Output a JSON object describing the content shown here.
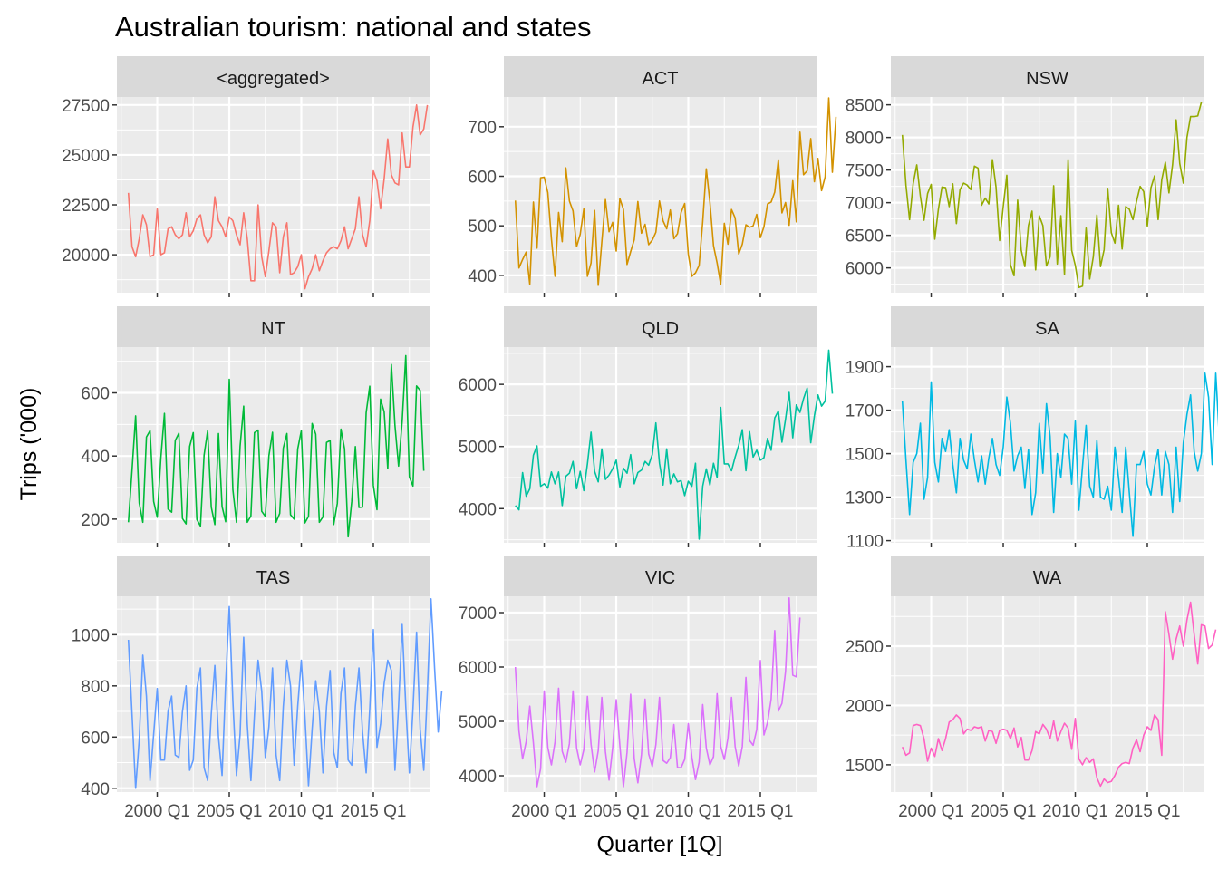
{
  "chart_data": {
    "type": "line",
    "title": "Australian tourism: national and states",
    "xlabel": "Quarter [1Q]",
    "ylabel": "Trips ('000)",
    "x_tick_labels": [
      "2000 Q1",
      "2005 Q1",
      "2010 Q1",
      "2015 Q1"
    ],
    "x_tick_years": [
      2000,
      2005,
      2010,
      2015
    ],
    "x_range": [
      1997.2,
      2018.9
    ],
    "start": "1998 Q1",
    "legend": "none",
    "panels": [
      {
        "name": "<aggregated>",
        "color": "#F8766D",
        "ylim": [
          18100,
          27900
        ],
        "yticks": [
          20000,
          22500,
          25000,
          27500
        ],
        "yticklabels": [
          "20000",
          "22500",
          "25000",
          "27500"
        ],
        "values": [
          23100,
          20400,
          19900,
          20800,
          22000,
          21500,
          19900,
          20000,
          22300,
          20000,
          20100,
          21300,
          21400,
          21000,
          20800,
          21000,
          22100,
          20900,
          21200,
          21800,
          22000,
          21000,
          20600,
          20900,
          22900,
          21700,
          21400,
          20900,
          21900,
          21700,
          21000,
          20500,
          22100,
          20800,
          18700,
          18700,
          22500,
          19900,
          18900,
          20200,
          21600,
          21400,
          19100,
          20900,
          21600,
          19000,
          19100,
          19400,
          20000,
          18300,
          18900,
          19300,
          20000,
          19200,
          19700,
          20100,
          20300,
          20400,
          20300,
          20700,
          21400,
          20300,
          20800,
          21300,
          22900,
          21000,
          20400,
          21700,
          24200,
          23700,
          22300,
          23800,
          25800,
          24000,
          23600,
          23500,
          26100,
          24400,
          24400,
          26400,
          27500,
          26000,
          26300,
          27500
        ]
      },
      {
        "name": "ACT",
        "color": "#D39200",
        "ylim": [
          365,
          760
        ],
        "yticks": [
          400,
          500,
          600,
          700
        ],
        "yticklabels": [
          "400",
          "500",
          "600",
          "700"
        ],
        "values": [
          551,
          415,
          432,
          447,
          382,
          548,
          455,
          597,
          598,
          567,
          474,
          398,
          527,
          468,
          617,
          550,
          530,
          458,
          483,
          534,
          398,
          425,
          531,
          380,
          468,
          553,
          488,
          507,
          449,
          555,
          533,
          422,
          448,
          472,
          549,
          485,
          503,
          462,
          471,
          487,
          550,
          510,
          494,
          532,
          474,
          484,
          527,
          545,
          443,
          398,
          405,
          420,
          508,
          615,
          548,
          460,
          425,
          382,
          505,
          463,
          533,
          516,
          443,
          463,
          502,
          497,
          500,
          523,
          476,
          498,
          544,
          548,
          568,
          633,
          526,
          547,
          501,
          591,
          508,
          689,
          603,
          611,
          676,
          589,
          636,
          571,
          599,
          758,
          608,
          720
        ]
      },
      {
        "name": "NSW",
        "color": "#93AA00",
        "ylim": [
          5620,
          8620
        ],
        "yticks": [
          6000,
          6500,
          7000,
          7500,
          8000,
          8500
        ],
        "yticklabels": [
          "6000",
          "6500",
          "7000",
          "7500",
          "8000",
          "8500"
        ],
        "values": [
          8040,
          7270,
          6740,
          7290,
          7580,
          7100,
          6730,
          7140,
          7280,
          6440,
          6900,
          7240,
          7230,
          6940,
          7290,
          6680,
          7200,
          7300,
          7270,
          7200,
          7560,
          7530,
          6960,
          7070,
          6980,
          7660,
          7240,
          6420,
          6940,
          7420,
          6050,
          5880,
          7040,
          6270,
          6020,
          6650,
          6870,
          5970,
          6800,
          6650,
          6030,
          6170,
          7260,
          6060,
          6800,
          5900,
          7660,
          6270,
          6040,
          5700,
          5720,
          6610,
          5830,
          6170,
          6810,
          6020,
          6280,
          7220,
          6540,
          6380,
          6960,
          6290,
          6940,
          6900,
          6740,
          7020,
          7250,
          7170,
          6640,
          7230,
          7410,
          6740,
          7350,
          7620,
          7150,
          7580,
          8270,
          7600,
          7300,
          8000,
          8320,
          8320,
          8330,
          8540
        ]
      },
      {
        "name": "NT",
        "color": "#00BA38",
        "ylim": [
          125,
          745
        ],
        "yticks": [
          200,
          400,
          600
        ],
        "yticklabels": [
          "200",
          "400",
          "600"
        ],
        "values": [
          190,
          355,
          527,
          251,
          190,
          460,
          480,
          256,
          206,
          393,
          535,
          232,
          222,
          449,
          472,
          202,
          185,
          430,
          474,
          199,
          178,
          402,
          480,
          238,
          183,
          471,
          240,
          192,
          643,
          293,
          190,
          431,
          558,
          190,
          210,
          474,
          482,
          225,
          209,
          401,
          475,
          190,
          218,
          425,
          471,
          214,
          200,
          422,
          480,
          188,
          209,
          503,
          469,
          190,
          207,
          443,
          449,
          183,
          250,
          485,
          423,
          144,
          256,
          430,
          237,
          238,
          537,
          621,
          307,
          230,
          580,
          540,
          360,
          690,
          497,
          368,
          510,
          718,
          334,
          305,
          622,
          608,
          353
        ]
      },
      {
        "name": "QLD",
        "color": "#00C19F",
        "ylim": [
          3450,
          6600
        ],
        "yticks": [
          4000,
          5000,
          6000
        ],
        "yticklabels": [
          "4000",
          "5000",
          "6000"
        ],
        "values": [
          4050,
          3980,
          4580,
          4200,
          4320,
          4860,
          5010,
          4360,
          4400,
          4330,
          4590,
          4400,
          4590,
          4050,
          4520,
          4570,
          4760,
          4320,
          4600,
          4290,
          4720,
          5230,
          4600,
          4430,
          4960,
          4470,
          4540,
          4640,
          4780,
          4350,
          4650,
          4570,
          4870,
          4400,
          4580,
          4620,
          4760,
          4700,
          4870,
          5380,
          4730,
          4380,
          4960,
          4400,
          4560,
          4430,
          4450,
          4210,
          4440,
          4360,
          4730,
          3510,
          4360,
          4640,
          4380,
          4730,
          4500,
          5630,
          4720,
          4720,
          4610,
          4830,
          5020,
          5270,
          4610,
          5240,
          4830,
          4940,
          4780,
          4820,
          5130,
          4940,
          5460,
          5570,
          5070,
          5440,
          5870,
          5140,
          5670,
          5550,
          5770,
          5940,
          5060,
          5490,
          5830,
          5650,
          5730,
          6550,
          5850
        ]
      },
      {
        "name": "SA",
        "color": "#00B9E3",
        "ylim": [
          1090,
          1990
        ],
        "yticks": [
          1100,
          1300,
          1500,
          1700,
          1900
        ],
        "yticklabels": [
          "1100",
          "1300",
          "1500",
          "1700",
          "1900"
        ],
        "values": [
          1740,
          1470,
          1220,
          1460,
          1500,
          1640,
          1290,
          1390,
          1830,
          1460,
          1370,
          1570,
          1510,
          1610,
          1450,
          1320,
          1570,
          1470,
          1430,
          1590,
          1470,
          1370,
          1490,
          1360,
          1480,
          1570,
          1450,
          1400,
          1530,
          1760,
          1640,
          1420,
          1490,
          1530,
          1340,
          1520,
          1220,
          1320,
          1640,
          1410,
          1730,
          1580,
          1230,
          1500,
          1390,
          1590,
          1570,
          1360,
          1650,
          1240,
          1440,
          1630,
          1350,
          1300,
          1560,
          1300,
          1290,
          1350,
          1240,
          1530,
          1390,
          1230,
          1530,
          1320,
          1120,
          1450,
          1450,
          1510,
          1360,
          1310,
          1440,
          1520,
          1310,
          1510,
          1450,
          1230,
          1530,
          1280,
          1550,
          1680,
          1770,
          1510,
          1420,
          1500,
          1870,
          1760,
          1450,
          1870,
          1570,
          1540,
          1620,
          1840
        ]
      },
      {
        "name": "TAS",
        "color": "#619CFF",
        "ylim": [
          385,
          1150
        ],
        "yticks": [
          400,
          600,
          800,
          1000
        ],
        "yticklabels": [
          "400",
          "600",
          "800",
          "1000"
        ],
        "values": [
          980,
          690,
          400,
          590,
          920,
          760,
          430,
          610,
          790,
          510,
          510,
          700,
          760,
          530,
          520,
          700,
          800,
          470,
          510,
          790,
          870,
          480,
          430,
          690,
          880,
          600,
          450,
          810,
          1110,
          740,
          450,
          610,
          990,
          650,
          430,
          690,
          900,
          780,
          520,
          640,
          870,
          530,
          430,
          720,
          900,
          800,
          490,
          720,
          900,
          680,
          410,
          630,
          820,
          700,
          460,
          720,
          860,
          540,
          480,
          770,
          870,
          510,
          490,
          720,
          870,
          620,
          460,
          710,
          1020,
          560,
          650,
          810,
          900,
          860,
          470,
          720,
          1040,
          720,
          460,
          710,
          1010,
          630,
          470,
          780,
          1140,
          870,
          620,
          780
        ]
      },
      {
        "name": "VIC",
        "color": "#DB72FB",
        "ylim": [
          3700,
          7300
        ],
        "yticks": [
          4000,
          5000,
          6000,
          7000
        ],
        "yticklabels": [
          "4000",
          "5000",
          "6000",
          "7000"
        ],
        "values": [
          6000,
          4820,
          4310,
          4630,
          5280,
          4600,
          3800,
          4130,
          5560,
          4520,
          4200,
          4620,
          5610,
          4450,
          4250,
          4590,
          5560,
          4510,
          4200,
          4480,
          5460,
          4580,
          4070,
          4460,
          5440,
          4440,
          3920,
          4510,
          5400,
          4560,
          3800,
          4430,
          5500,
          4310,
          3870,
          4390,
          5410,
          4400,
          4170,
          4570,
          5440,
          4280,
          4230,
          4330,
          4940,
          4150,
          4150,
          4300,
          4960,
          4340,
          3930,
          4250,
          5310,
          4510,
          4200,
          4350,
          5510,
          4540,
          4300,
          4690,
          5440,
          4540,
          4180,
          4540,
          5810,
          4650,
          4560,
          4850,
          6120,
          4750,
          4980,
          5410,
          6670,
          5190,
          5330,
          5920,
          7270,
          5850,
          5820,
          6910
        ]
      },
      {
        "name": "WA",
        "color": "#FF61C3",
        "ylim": [
          1270,
          2920
        ],
        "yticks": [
          1500,
          2000,
          2500
        ],
        "yticklabels": [
          "1500",
          "2000",
          "2500"
        ],
        "values": [
          1650,
          1580,
          1600,
          1830,
          1840,
          1830,
          1720,
          1530,
          1640,
          1570,
          1720,
          1620,
          1720,
          1860,
          1880,
          1920,
          1890,
          1760,
          1800,
          1790,
          1820,
          1810,
          1820,
          1700,
          1790,
          1780,
          1680,
          1790,
          1800,
          1790,
          1720,
          1810,
          1650,
          1730,
          1540,
          1540,
          1620,
          1780,
          1760,
          1840,
          1800,
          1720,
          1870,
          1700,
          1780,
          1850,
          1810,
          1630,
          1890,
          1550,
          1500,
          1560,
          1520,
          1550,
          1390,
          1320,
          1380,
          1350,
          1360,
          1410,
          1480,
          1510,
          1520,
          1510,
          1640,
          1710,
          1610,
          1750,
          1820,
          1790,
          1920,
          1880,
          1580,
          2790,
          2600,
          2390,
          2560,
          2670,
          2500,
          2720,
          2870,
          2600,
          2350,
          2680,
          2670,
          2480,
          2510,
          2640
        ]
      }
    ]
  }
}
